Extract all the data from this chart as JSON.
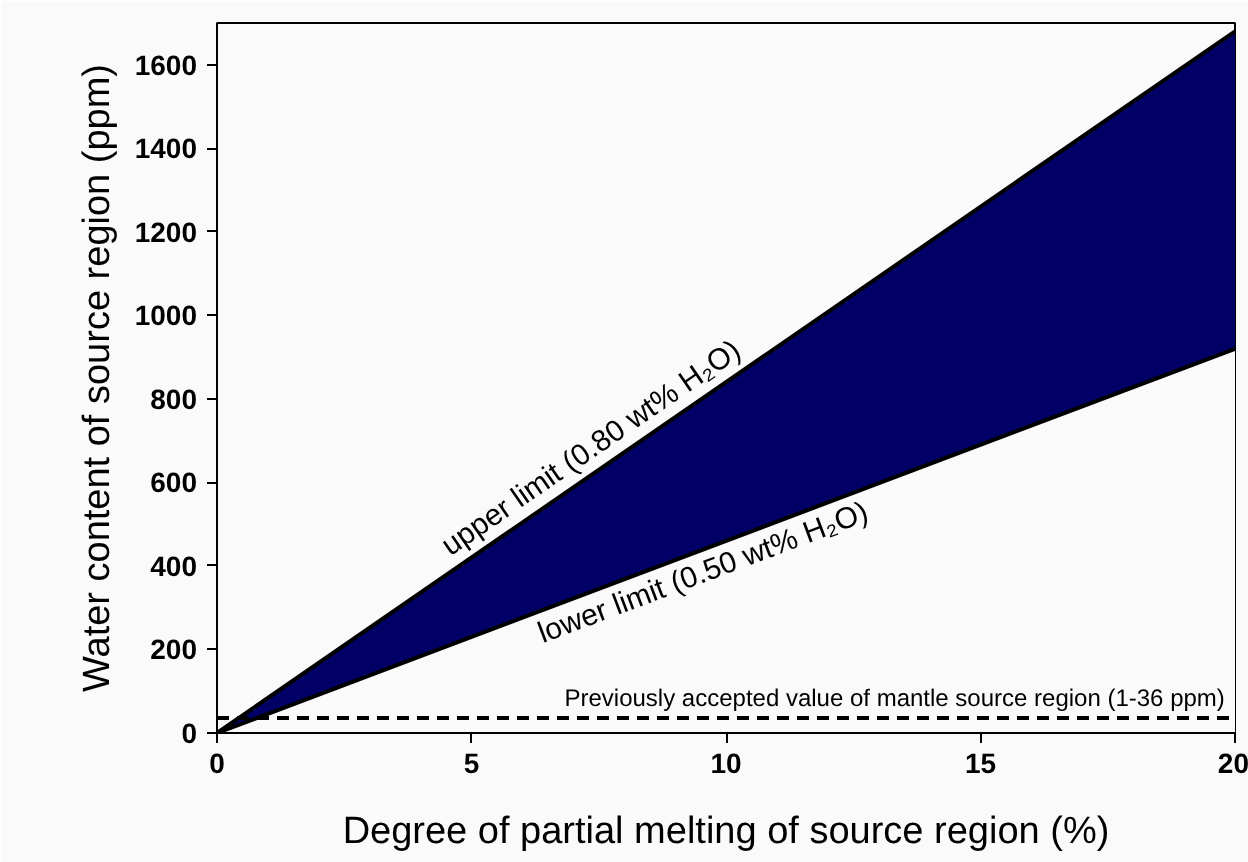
{
  "chart_data": {
    "type": "area",
    "xlabel": "Degree of partial melting of source region (%)",
    "ylabel": "Water content of source region (ppm)",
    "x": [
      0,
      20
    ],
    "series": [
      {
        "color": "#fafafa",
        "values": [
          0,
          920
        ]
      },
      {
        "color": "#000066",
        "values": [
          0,
          760
        ]
      }
    ],
    "xlim": [
      0,
      20
    ],
    "xticks": [
      0,
      5,
      10,
      15,
      20
    ],
    "ylim": [
      0,
      1700
    ],
    "yticks": [
      0,
      200,
      400,
      600,
      800,
      1000,
      1200,
      1400,
      1600
    ],
    "ref_lines": [
      {
        "axis": "y",
        "value": 36,
        "label": "Previously accepted value of mantle source region (1-36 ppm)",
        "color": "#000000",
        "line_style": "dashed"
      }
    ],
    "annotations": [
      {
        "text": "upper limit (0.80 wt% H₂O)",
        "x": 7.6,
        "y": 638
      },
      {
        "text": "lower limit (0.50 wt% H₂O)",
        "x": 9.4,
        "y": 432
      }
    ],
    "stacked": true,
    "grid": false
  }
}
